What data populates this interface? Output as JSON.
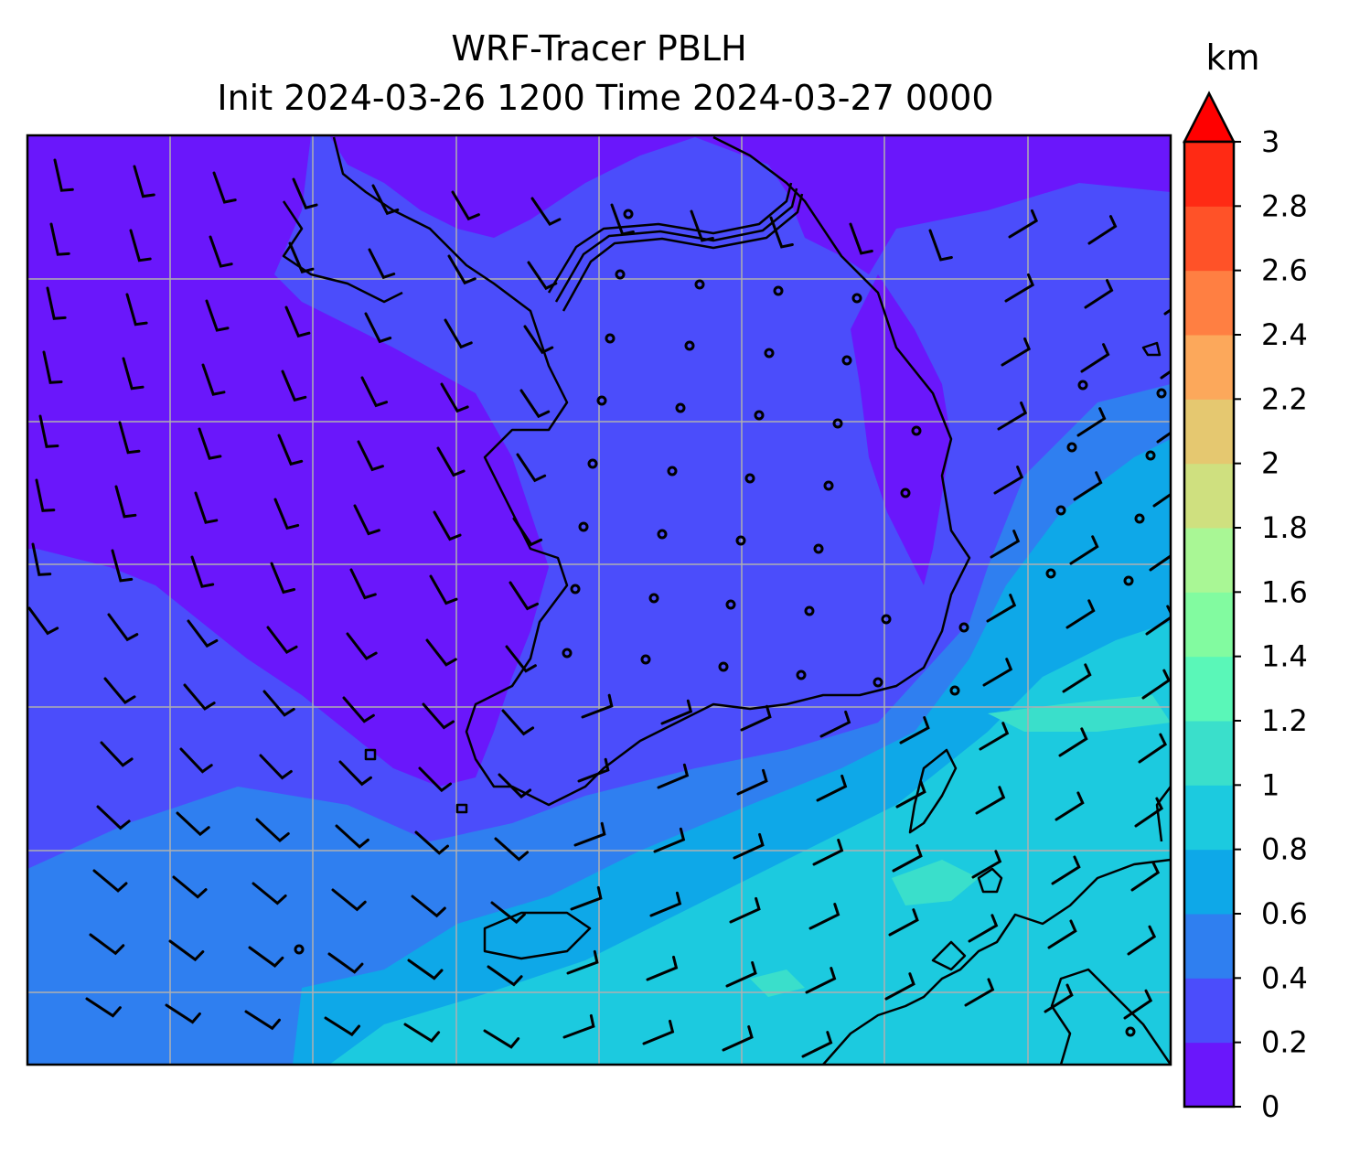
{
  "title": {
    "line1": "WRF-Tracer PBLH",
    "line2": "Init 2024-03-26 1200 Time 2024-03-27 0000"
  },
  "colorbar": {
    "unit": "km",
    "tick_labels": [
      "0",
      "0.2",
      "0.4",
      "0.6",
      "0.8",
      "1",
      "1.2",
      "1.4",
      "1.6",
      "1.8",
      "2",
      "2.2",
      "2.4",
      "2.6",
      "2.8",
      "3"
    ],
    "levels": [
      0,
      0.2,
      0.4,
      0.6,
      0.8,
      1.0,
      1.2,
      1.4,
      1.6,
      1.8,
      2.0,
      2.2,
      2.4,
      2.6,
      2.8,
      3.0
    ],
    "colors": [
      "#6a17fb",
      "#4b4dfb",
      "#2f7ff0",
      "#0ea8e8",
      "#1ccadf",
      "#3adfcb",
      "#5af7b8",
      "#82fba0",
      "#a9f795",
      "#cfe07f",
      "#e5c870",
      "#fca85b",
      "#ff7f42",
      "#ff5228",
      "#ff2a14"
    ],
    "extend": "max",
    "extend_color": "#ff0000"
  },
  "map": {
    "type": "contourf",
    "field": "PBLH",
    "gridlines": true,
    "wind_barbs": true,
    "station_markers": true,
    "colors": {
      "frame": "#000000",
      "grid": "#b0b0b0",
      "coast": "#000000"
    },
    "field_levels_shown": {
      "low": "0-0.2",
      "mid": "0.2-0.4",
      "ocean_south": "0.4-0.8",
      "max_patch": "1.0-1.2"
    }
  }
}
